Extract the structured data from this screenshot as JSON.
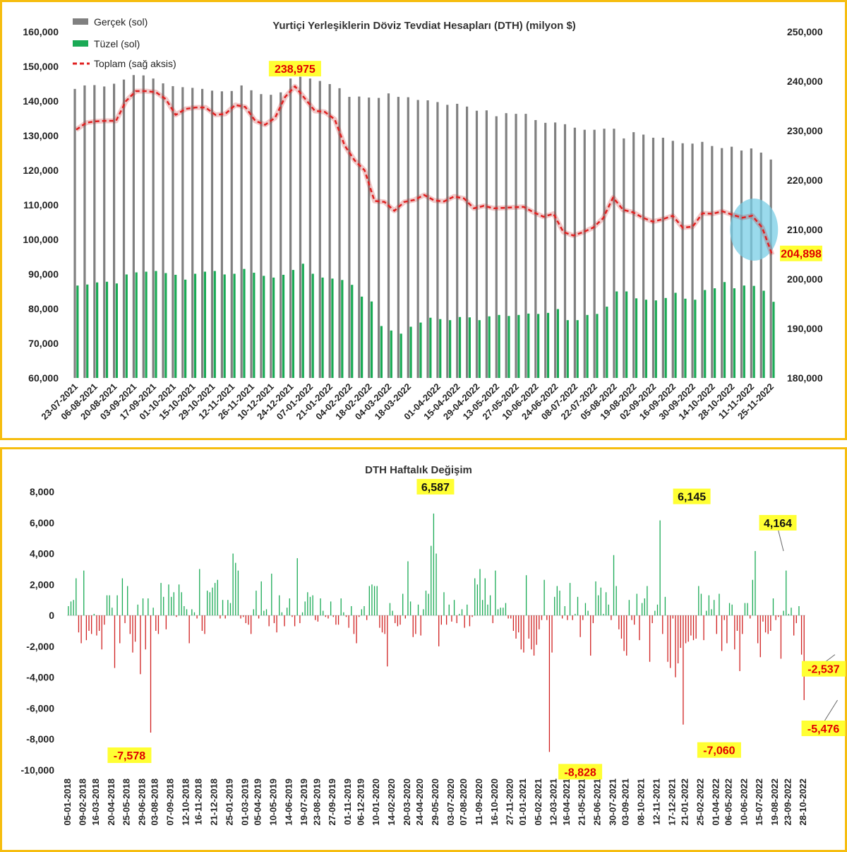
{
  "chart_data": [
    {
      "type": "bar",
      "title": "Yurtiçi Yerleşiklerin Döviz Tevdiat Hesapları (DTH) (milyon $)",
      "legend": [
        "Gerçek (sol)",
        "Tüzel (sol)",
        "Toplam (sağ aksis)"
      ],
      "legend_position": "top-left",
      "ylim_left": [
        60000,
        160000
      ],
      "yticks_left": [
        "60,000",
        "70,000",
        "80,000",
        "90,000",
        "100,000",
        "110,000",
        "120,000",
        "130,000",
        "140,000",
        "150,000",
        "160,000"
      ],
      "ylim_right": [
        180000,
        250000
      ],
      "yticks_right": [
        "180,000",
        "190,000",
        "200,000",
        "210,000",
        "220,000",
        "230,000",
        "240,000",
        "250,000"
      ],
      "xtick_labels": [
        "23-07-2021",
        "06-08-2021",
        "20-08-2021",
        "03-09-2021",
        "17-09-2021",
        "01-10-2021",
        "15-10-2021",
        "29-10-2021",
        "12-11-2021",
        "26-11-2021",
        "10-12-2021",
        "24-12-2021",
        "07-01-2022",
        "21-01-2022",
        "04-02-2022",
        "18-02-2022",
        "04-03-2022",
        "18-03-2022",
        "01-04-2022",
        "15-04-2022",
        "29-04-2022",
        "13-05-2022",
        "27-05-2022",
        "10-06-2022",
        "24-06-2022",
        "08-07-2022",
        "22-07-2022",
        "05-08-2022",
        "19-08-2022",
        "02-09-2022",
        "16-09-2022",
        "30-09-2022",
        "14-10-2022",
        "28-10-2022",
        "11-11-2022",
        "25-11-2022"
      ],
      "series": [
        {
          "name": "Gerçek (sol)",
          "color": "#808080",
          "values": [
            143500,
            144500,
            144600,
            144200,
            145000,
            146200,
            147500,
            147400,
            146500,
            145100,
            144300,
            144000,
            143800,
            143500,
            143000,
            142800,
            142900,
            144500,
            143100,
            142000,
            141800,
            142500,
            146500,
            147000,
            146500,
            145800,
            144900,
            143700,
            141200,
            141300,
            141000,
            140900,
            142200,
            141200,
            141100,
            140300,
            140200,
            139700,
            138900,
            139200,
            138400,
            137200,
            137300,
            135600,
            136500,
            136300,
            136300,
            134500,
            133700,
            133800,
            133300,
            132300,
            131700,
            131700,
            132000,
            132000,
            129200,
            131000,
            130300,
            129400,
            129400,
            128500,
            127800,
            127700,
            128200,
            127000,
            126400,
            126800,
            125700,
            126300,
            125100,
            123100
          ]
        },
        {
          "name": "Tüzel (sol)",
          "color": "#1aaa55",
          "values": [
            86700,
            87000,
            87600,
            87800,
            87300,
            89900,
            90500,
            90700,
            90900,
            90300,
            89800,
            88400,
            90100,
            90700,
            90900,
            89900,
            90100,
            91500,
            90400,
            89500,
            89000,
            89800,
            91200,
            93000,
            90100,
            89000,
            88700,
            88300,
            86900,
            83500,
            82100,
            75000,
            73700,
            72800,
            74800,
            76000,
            77400,
            77000,
            76700,
            77600,
            77500,
            76700,
            77800,
            78200,
            77900,
            78200,
            78600,
            78500,
            78800,
            79900,
            76700,
            76700,
            78200,
            78500,
            80600,
            85000,
            85000,
            83000,
            82600,
            82400,
            83100,
            84600,
            82900,
            82600,
            85400,
            85900,
            87700,
            85900,
            86700,
            86600,
            85200,
            82000
          ]
        },
        {
          "name": "Toplam (sağ aksis)",
          "color": "#e02020",
          "values": [
            230200,
            231600,
            231900,
            232000,
            232000,
            236000,
            238000,
            238000,
            237800,
            236400,
            233200,
            234400,
            234700,
            234700,
            233200,
            233400,
            235200,
            234800,
            232000,
            231200,
            232600,
            236800,
            238975,
            236500,
            234000,
            233800,
            232300,
            227000,
            224000,
            222000,
            215800,
            215600,
            213800,
            215600,
            216000,
            217000,
            215900,
            215700,
            216700,
            216300,
            214300,
            214800,
            214300,
            214400,
            214500,
            214600,
            213500,
            212600,
            213200,
            209500,
            208800,
            209500,
            210400,
            212300,
            216500,
            214000,
            213500,
            212400,
            211600,
            212100,
            212800,
            210400,
            210600,
            213300,
            213200,
            213700,
            213000,
            212400,
            212800,
            210400,
            204898
          ]
        }
      ],
      "annotations": [
        {
          "label": "238,975",
          "series": "Toplam (sağ aksis)",
          "index": 22,
          "value": 238975
        },
        {
          "label": "204,898",
          "series": "Toplam (sağ aksis)",
          "index": 70,
          "value": 204898
        }
      ]
    },
    {
      "type": "bar",
      "title": "DTH Haftalık Değişim",
      "ylim": [
        -10000,
        8000
      ],
      "yticks": [
        "-10,000",
        "-8,000",
        "-6,000",
        "-4,000",
        "-2,000",
        "0",
        "2,000",
        "4,000",
        "6,000",
        "8,000"
      ],
      "xtick_labels": [
        "05-01-2018",
        "09-02-2018",
        "16-03-2018",
        "20-04-2018",
        "25-05-2018",
        "29-06-2018",
        "03-08-2018",
        "07-09-2018",
        "12-10-2018",
        "16-11-2018",
        "21-12-2018",
        "25-01-2019",
        "01-03-2019",
        "05-04-2019",
        "10-05-2019",
        "14-06-2019",
        "19-07-2019",
        "23-08-2019",
        "27-09-2019",
        "01-11-2019",
        "06-12-2019",
        "10-01-2020",
        "14-02-2020",
        "20-03-2020",
        "24-04-2020",
        "29-05-2020",
        "03-07-2020",
        "07-08-2020",
        "11-09-2020",
        "16-10-2020",
        "27-11-2020",
        "01-01-2021",
        "05-02-2021",
        "12-03-2021",
        "16-04-2021",
        "21-05-2021",
        "25-06-2021",
        "30-07-2021",
        "03-09-2021",
        "08-10-2021",
        "12-11-2021",
        "17-12-2021",
        "21-01-2022",
        "25-02-2022",
        "01-04-2022",
        "06-05-2022",
        "10-06-2022",
        "15-07-2022",
        "19-08-2022",
        "23-09-2022",
        "28-10-2022"
      ],
      "positive_color": "#1aaa55",
      "negative_color": "#d02020",
      "series": [
        {
          "name": "",
          "values": [
            600,
            900,
            1000,
            2400,
            -1100,
            -1800,
            2900,
            -1600,
            -1000,
            -1200,
            100,
            -1300,
            -1000,
            -2200,
            -600,
            1300,
            1300,
            500,
            -3400,
            1300,
            -1800,
            2400,
            -500,
            1900,
            -1200,
            -2400,
            -1700,
            700,
            -3800,
            1100,
            -2200,
            1100,
            -7578,
            500,
            -1000,
            -1200,
            2100,
            1200,
            -900,
            2000,
            1200,
            1500,
            -100,
            2000,
            1500,
            600,
            400,
            -1800,
            400,
            200,
            -200,
            3000,
            -1000,
            -1200,
            1600,
            1500,
            1800,
            2100,
            2300,
            -200,
            1000,
            -200,
            1000,
            800,
            4000,
            3400,
            2900,
            -200,
            -100,
            -500,
            -600,
            -1200,
            400,
            1600,
            -200,
            2200,
            300,
            400,
            -700,
            2700,
            -500,
            -1100,
            1300,
            200,
            -700,
            500,
            1100,
            -100,
            -700,
            3700,
            -500,
            200,
            900,
            1500,
            1200,
            1300,
            -300,
            -400,
            1100,
            300,
            -100,
            -200,
            900,
            -100,
            -600,
            -600,
            1100,
            200,
            -100,
            -800,
            600,
            -1200,
            -1800,
            -100,
            400,
            600,
            -300,
            1900,
            2000,
            1900,
            1900,
            -800,
            -1100,
            -1200,
            -3300,
            800,
            300,
            -500,
            -700,
            -600,
            1400,
            -200,
            3500,
            900,
            -1400,
            -1200,
            700,
            -1300,
            400,
            1600,
            1400,
            4500,
            6587,
            4000,
            -2000,
            -600,
            1500,
            -600,
            700,
            -400,
            1000,
            -500,
            100,
            400,
            -800,
            700,
            -700,
            -100,
            2400,
            2000,
            3000,
            1000,
            2400,
            700,
            1300,
            -500,
            2900,
            400,
            500,
            500,
            800,
            -200,
            -200,
            -1000,
            -1500,
            -1100,
            -2200,
            -2400,
            2600,
            -1500,
            -2200,
            -2600,
            -1900,
            -900,
            -300,
            2300,
            -300,
            -8828,
            -2400,
            1200,
            1900,
            1600,
            -200,
            600,
            -300,
            2100,
            -300,
            100,
            1200,
            -1400,
            -300,
            800,
            300,
            -2600,
            -500,
            2200,
            1300,
            1800,
            100,
            1500,
            700,
            -300,
            3900,
            1900,
            -900,
            -1500,
            -2300,
            -2600,
            1000,
            -300,
            -600,
            1400,
            -1600,
            800,
            1100,
            1900,
            -3000,
            -500,
            300,
            700,
            6145,
            -1200,
            1200,
            -3000,
            -3400,
            -200,
            -4000,
            -3100,
            -2100,
            -7060,
            -1800,
            -1700,
            -1300,
            -1600,
            -1500,
            1900,
            1400,
            -1600,
            300,
            1300,
            400,
            1000,
            -1200,
            1400,
            -2300,
            -300,
            -1800,
            800,
            700,
            -2200,
            -1000,
            -3600,
            -1200,
            800,
            800,
            -200,
            2300,
            4164,
            -1800,
            -2700,
            -400,
            -1100,
            -1200,
            -1000,
            1100,
            -300,
            -100,
            -2800,
            300,
            2900,
            100,
            500,
            -1300,
            -500,
            600,
            -2537,
            -5476
          ]
        }
      ],
      "annotations": [
        {
          "label": "-7,578",
          "index": 32,
          "value": -7578
        },
        {
          "label": "6,587",
          "index": 146,
          "value": 6587
        },
        {
          "label": "-8,828",
          "index": 199,
          "value": -8828
        },
        {
          "label": "6,145",
          "index": 244,
          "value": 6145
        },
        {
          "label": "-7,060",
          "index": 253,
          "value": -7060
        },
        {
          "label": "4,164",
          "index": 278,
          "value": 4164
        },
        {
          "label": "-2,537",
          "index": 298,
          "value": -2537
        },
        {
          "label": "-5,476",
          "index": 299,
          "value": -5476
        }
      ]
    }
  ]
}
